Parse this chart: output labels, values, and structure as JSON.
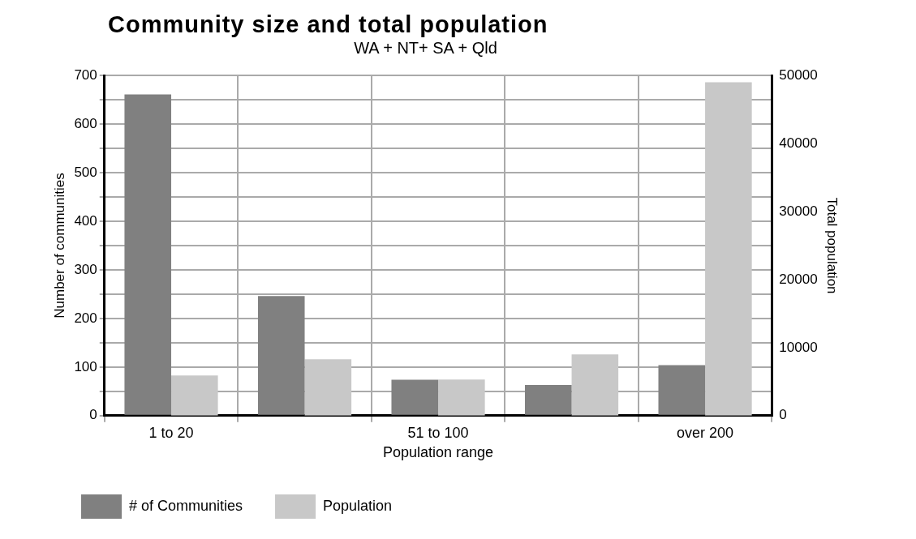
{
  "chart_data": {
    "type": "bar",
    "title": "Community size and total population",
    "subtitle": "WA + NT+ SA + Qld",
    "xlabel": "Population range",
    "ylabel": "Number of communities",
    "y2label": "Total population",
    "categories": [
      "1 to 20",
      null,
      "51 to 100",
      null,
      "over 200"
    ],
    "series": [
      {
        "name": "# of Communities",
        "color": "#808080",
        "values": [
          661,
          246,
          74,
          63,
          104
        ]
      },
      {
        "name": "Population",
        "color": "#c8c8c8",
        "axis": "y2",
        "values": [
          5900,
          8300,
          5300,
          9000,
          49000
        ]
      }
    ],
    "ylim": [
      0,
      700
    ],
    "yticks": [
      0,
      {
        "value": 50,
        "label": null
      },
      100,
      {
        "value": 150,
        "label": null
      },
      200,
      {
        "value": 250,
        "label": null
      },
      300,
      {
        "value": 350,
        "label": null
      },
      400,
      {
        "value": 450,
        "label": null
      },
      500,
      {
        "value": 550,
        "label": null
      },
      600,
      {
        "value": 650,
        "label": null
      },
      700
    ],
    "y2lim": [
      0,
      50000
    ],
    "y2ticks": [
      0,
      10000,
      20000,
      30000,
      40000,
      50000
    ],
    "grid": true,
    "legend": "bottom"
  }
}
